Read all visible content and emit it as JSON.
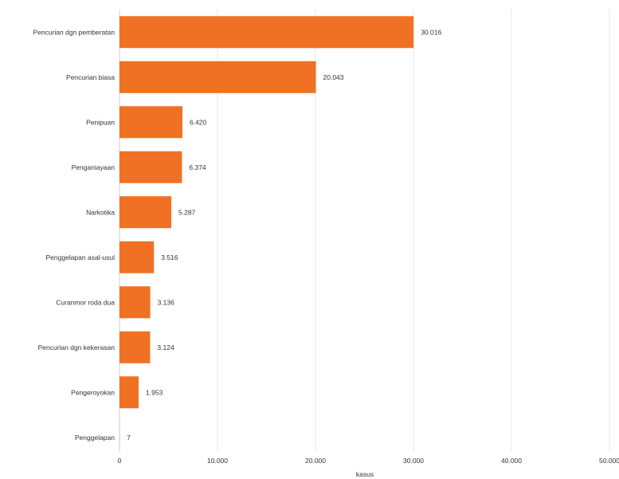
{
  "chart_data": {
    "type": "bar",
    "orientation": "horizontal",
    "categories": [
      "Pencurian dgn pemberatan",
      "Pencurian biasa",
      "Penipuan",
      "Penganiayaan",
      "Narkotika",
      "Penggelapan asal-usul",
      "Curanmor roda dua",
      "Pencurian dgn kekerasan",
      "Pengeroyokan",
      "Penggelapan"
    ],
    "values": [
      30016,
      20043,
      6420,
      6374,
      5287,
      3516,
      3136,
      3124,
      1953,
      7
    ],
    "value_labels": [
      "30.016",
      "20.043",
      "6.420",
      "6.374",
      "5.287",
      "3.516",
      "3.136",
      "3.124",
      "1.953",
      "7"
    ],
    "xlim": [
      0,
      50000
    ],
    "xticks": [
      0,
      10000,
      20000,
      30000,
      40000,
      50000
    ],
    "xtick_labels": [
      "0",
      "10.000",
      "20.000",
      "30.000",
      "40.000",
      "50.000"
    ],
    "xlabel": "kasus",
    "ylabel": "",
    "title": "",
    "grid": true,
    "colors": {
      "bar": "#f07124",
      "grid": "#e4e4e4",
      "text": "#333333"
    }
  }
}
